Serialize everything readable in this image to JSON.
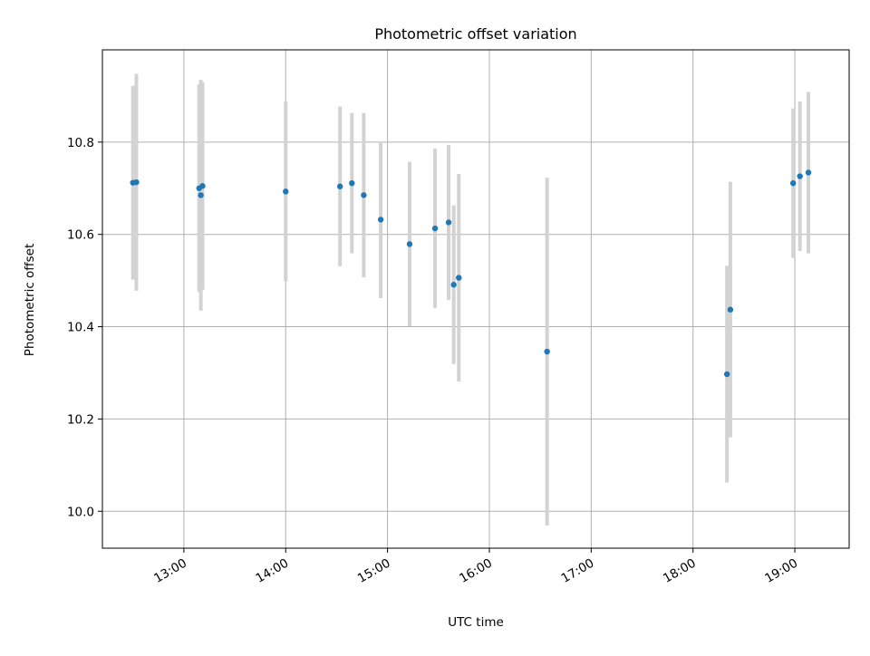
{
  "chart_data": {
    "type": "scatter",
    "title": "Photometric offset variation",
    "xlabel": "UTC time",
    "ylabel": "Photometric offset",
    "x_type": "time",
    "xlim": [
      "12:12",
      "19:32"
    ],
    "ylim": [
      9.92,
      11.0
    ],
    "x_ticks": [
      "13:00",
      "14:00",
      "15:00",
      "16:00",
      "17:00",
      "18:00",
      "19:00"
    ],
    "y_ticks": [
      "10.0",
      "10.2",
      "10.4",
      "10.6",
      "10.8"
    ],
    "grid": true,
    "legend": "none",
    "colors": {
      "point": "#1f77b4",
      "errorbar": "#d3d3d3",
      "grid": "#b0b0b0"
    },
    "series": [
      {
        "points": [
          {
            "x": "12:30",
            "y": 10.712,
            "yerr": 0.21
          },
          {
            "x": "12:32",
            "y": 10.713,
            "yerr": 0.235
          },
          {
            "x": "13:09",
            "y": 10.7,
            "yerr": 0.225
          },
          {
            "x": "13:10",
            "y": 10.685,
            "yerr": 0.25
          },
          {
            "x": "13:11",
            "y": 10.705,
            "yerr": 0.225
          },
          {
            "x": "14:00",
            "y": 10.693,
            "yerr": 0.195
          },
          {
            "x": "14:32",
            "y": 10.704,
            "yerr": 0.173
          },
          {
            "x": "14:39",
            "y": 10.711,
            "yerr": 0.152
          },
          {
            "x": "14:46",
            "y": 10.685,
            "yerr": 0.178
          },
          {
            "x": "14:56",
            "y": 10.632,
            "yerr": 0.17
          },
          {
            "x": "15:13",
            "y": 10.579,
            "yerr": 0.178
          },
          {
            "x": "15:28",
            "y": 10.613,
            "yerr": 0.173
          },
          {
            "x": "15:36",
            "y": 10.626,
            "yerr": 0.168
          },
          {
            "x": "15:39",
            "y": 10.491,
            "yerr": 0.172
          },
          {
            "x": "15:42",
            "y": 10.506,
            "yerr": 0.225
          },
          {
            "x": "16:34",
            "y": 10.346,
            "yerr": 0.377
          },
          {
            "x": "18:20",
            "y": 10.297,
            "yerr": 0.235
          },
          {
            "x": "18:22",
            "y": 10.437,
            "yerr": 0.277
          },
          {
            "x": "18:59",
            "y": 10.711,
            "yerr": 0.162
          },
          {
            "x": "19:03",
            "y": 10.726,
            "yerr": 0.162
          },
          {
            "x": "19:08",
            "y": 10.734,
            "yerr": 0.175
          }
        ]
      }
    ]
  }
}
